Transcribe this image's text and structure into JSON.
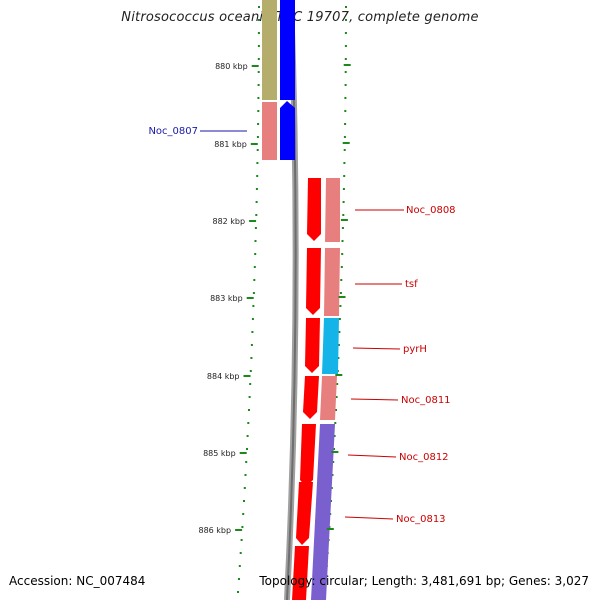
{
  "title": "Nitrosococcus oceani ATCC 19707, complete genome",
  "footer": {
    "accession": "Accession: NC_007484",
    "topology": "Topology: circular; Length: 3,481,691 bp; Genes: 3,027"
  },
  "scale_labels": [
    "880 kbp",
    "881 kbp",
    "882 kbp",
    "883 kbp",
    "884 kbp",
    "885 kbp",
    "886 kbp"
  ],
  "gene_labels_left": [
    {
      "name": "Noc_0807",
      "color": "#1a1aa8"
    }
  ],
  "gene_labels_right": [
    {
      "name": "Noc_0808",
      "color": "#cc0000"
    },
    {
      "name": "tsf",
      "color": "#cc0000"
    },
    {
      "name": "pyrH",
      "color": "#cc0000"
    },
    {
      "name": "Noc_0811",
      "color": "#cc0000"
    },
    {
      "name": "Noc_0812",
      "color": "#cc0000"
    },
    {
      "name": "Noc_0813",
      "color": "#cc0000"
    }
  ],
  "colors": {
    "cds_forward": "#ff0000",
    "cds_reverse": "#0000ff",
    "cog_olive": "#b5ad6b",
    "cog_pink": "#e87f7f",
    "cog_cyan": "#14b4e8",
    "cog_purple": "#7a5fcf",
    "backbone": "#808080",
    "tick": "#1b8a1b"
  }
}
